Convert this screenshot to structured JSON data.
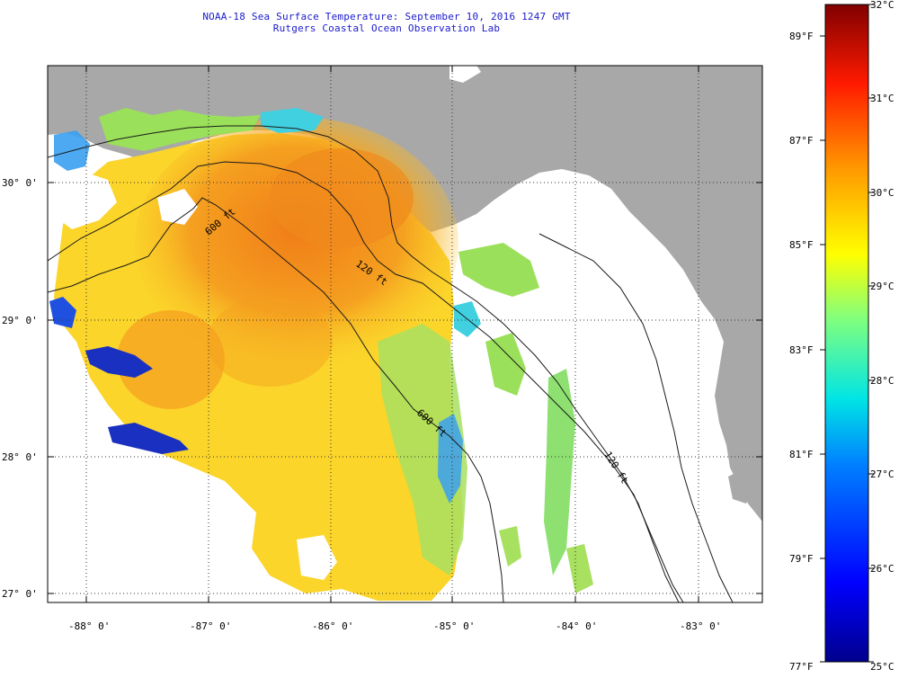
{
  "header": {
    "title": "NOAA-18 Sea Surface Temperature:  September 10, 2016 1247 GMT",
    "subtitle": "Rutgers Coastal Ocean Observation Lab"
  },
  "map": {
    "lon_labels": [
      "-88° 0'",
      "-87° 0'",
      "-86° 0'",
      "-85° 0'",
      "-84° 0'",
      "-83° 0'"
    ],
    "lat_labels": [
      "30° 0'",
      "29° 0'",
      "28° 0'",
      "27° 0'"
    ],
    "contours": [
      {
        "label": "120 ft"
      },
      {
        "label": "600 ft"
      },
      {
        "label": "600 ft"
      },
      {
        "label": "120 ft"
      }
    ],
    "colors": {
      "land": "#a8a8a8",
      "no_data": "#ffffff",
      "warm": "#f08a1c",
      "mid": "#ffe61e",
      "cool": "#9be05a",
      "cold": "#2b6cf0",
      "coldest": "#0a1aa0"
    }
  },
  "colorbar": {
    "celsius_labels": [
      "32°C",
      "31°C",
      "30°C",
      "29°C",
      "28°C",
      "27°C",
      "26°C",
      "25°C"
    ],
    "fahrenheit_labels": [
      "89°F",
      "87°F",
      "85°F",
      "83°F",
      "81°F",
      "79°F",
      "77°F"
    ]
  }
}
